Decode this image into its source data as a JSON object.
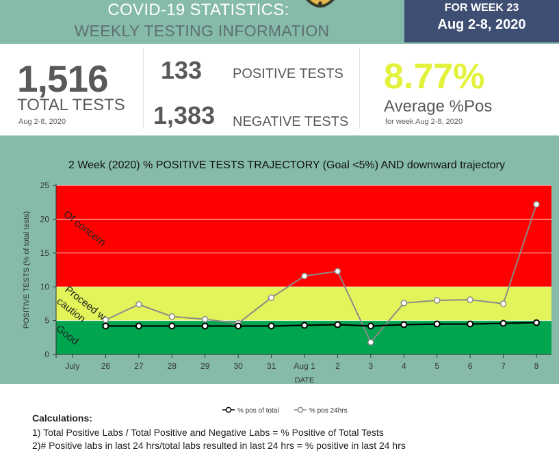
{
  "header": {
    "title_line1": "COVID-19 STATISTICS:",
    "title_line2": "WEEKLY TESTING INFORMATION",
    "week_label": "FOR WEEK 23",
    "week_dates": "Aug 2-8, 2020"
  },
  "stats": {
    "total_tests": "1,516",
    "total_label": "TOTAL TESTS",
    "total_date": "Aug 2-8, 2020",
    "positive_count": "133",
    "positive_label": "POSITIVE TESTS",
    "negative_count": "1,383",
    "negative_label": "NEGATIVE TESTS",
    "avg_pct": "8.77%",
    "avg_label": "Average %Pos",
    "avg_date": "for week Aug 2-8, 2020"
  },
  "chart_data": {
    "type": "line",
    "title": "2 Week (2020) % POSITIVE TESTS TRAJECTORY (Goal <5%) AND downward trajectory",
    "xlabel": "DATE",
    "ylabel": "POSITIVE TESTS (% of total tests)",
    "ylim": [
      0,
      25
    ],
    "yticks": [
      "0",
      "5",
      "10",
      "15",
      "20",
      "25"
    ],
    "categories": [
      "July",
      "26",
      "27",
      "28",
      "29",
      "30",
      "31",
      "Aug 1",
      "2",
      "3",
      "4",
      "5",
      "6",
      "7",
      "8"
    ],
    "series": [
      {
        "name": "% pos of total",
        "color": "#000000",
        "values": [
          null,
          4.2,
          4.2,
          4.2,
          4.2,
          4.2,
          4.2,
          4.3,
          4.4,
          4.2,
          4.4,
          4.5,
          4.5,
          4.6,
          4.7
        ]
      },
      {
        "name": "% pos 24hrs",
        "color": "#888888",
        "values": [
          null,
          5.1,
          7.4,
          5.6,
          5.2,
          4.6,
          8.4,
          11.6,
          12.3,
          1.8,
          7.6,
          8.0,
          8.1,
          7.5,
          22.2
        ]
      }
    ],
    "bands": [
      {
        "label": "Of concern",
        "from": 10,
        "to": 25,
        "color": "#ff0000"
      },
      {
        "label": "Proceed with caution",
        "label_line1": "Proceed w",
        "label_line2": "caution",
        "from": 5,
        "to": 10,
        "color": "#e2f459"
      },
      {
        "label": "Good",
        "from": 0,
        "to": 5,
        "color": "#00a54f"
      }
    ],
    "legend_position": "bottom",
    "grid": true
  },
  "calculations": {
    "title": "Calculations:",
    "line1": "1) Total Positive Labs / Total Positive and Negative Labs = % Positive of Total Tests",
    "line2": "2)# Positive labs in last 24 hrs/total labs resulted in last 24 hrs = % positive in last 24 hrs"
  }
}
